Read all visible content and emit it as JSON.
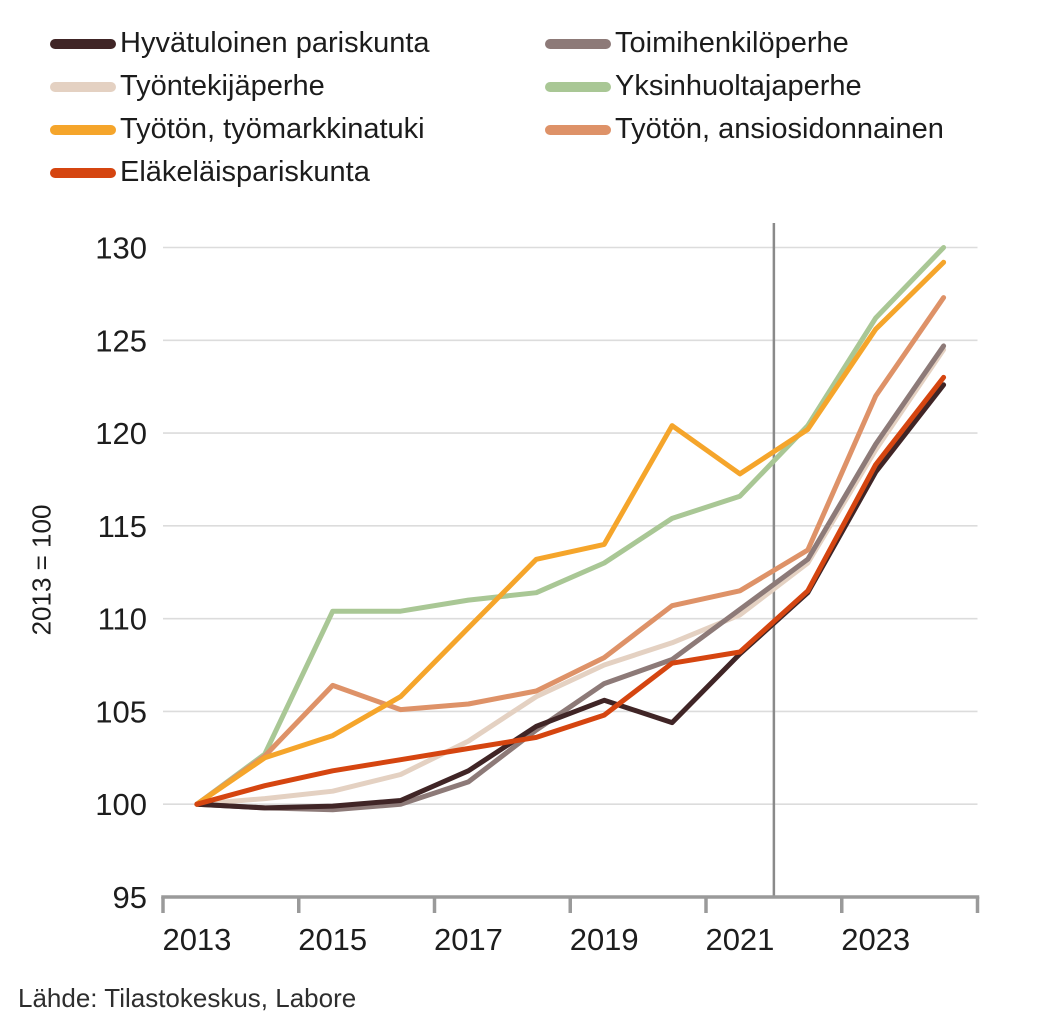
{
  "source": "Lähde: Tilastokeskus, Labore",
  "y_axis": {
    "title": "2013 = 100"
  },
  "x_axis": {
    "tick_labels": [
      "2013",
      "2015",
      "2017",
      "2019",
      "2021",
      "2023"
    ]
  },
  "chart_data": {
    "type": "line",
    "title": "",
    "xlabel": "",
    "ylabel": "2013 = 100",
    "x": [
      2013,
      2014,
      2015,
      2016,
      2017,
      2018,
      2019,
      2020,
      2021,
      2022,
      2023,
      2024
    ],
    "series": [
      {
        "name": "Hyvätuloinen pariskunta",
        "color": "#402526",
        "values": [
          100,
          99.8,
          99.9,
          100.2,
          101.8,
          104.2,
          105.6,
          104.4,
          108.1,
          111.4,
          117.9,
          122.6
        ]
      },
      {
        "name": "Toimihenkilöperhe",
        "color": "#8d7a78",
        "values": [
          100,
          99.8,
          99.7,
          100.0,
          101.2,
          104.0,
          106.5,
          107.8,
          110.5,
          113.2,
          119.4,
          124.7
        ]
      },
      {
        "name": "Työntekijäperhe",
        "color": "#e4d1c2",
        "values": [
          100,
          100.3,
          100.7,
          101.6,
          103.4,
          105.8,
          107.5,
          108.7,
          110.2,
          113.0,
          119.1,
          124.5
        ]
      },
      {
        "name": "Yksinhuoltajaperhe",
        "color": "#a9c795",
        "values": [
          100,
          102.7,
          110.4,
          110.4,
          111.0,
          111.4,
          113.0,
          115.4,
          116.6,
          120.4,
          126.2,
          130.0
        ]
      },
      {
        "name": "Työtön, työmarkkinatuki",
        "color": "#f5a52b",
        "values": [
          100,
          102.5,
          103.7,
          105.8,
          109.5,
          113.2,
          114.0,
          120.4,
          117.8,
          120.2,
          125.6,
          129.2
        ]
      },
      {
        "name": "Työtön, ansiosidonnainen",
        "color": "#de9268",
        "values": [
          100,
          102.6,
          106.4,
          105.1,
          105.4,
          106.1,
          107.9,
          110.7,
          111.5,
          113.7,
          122.0,
          127.3
        ]
      },
      {
        "name": "Eläkeläispariskunta",
        "color": "#d54510",
        "values": [
          100,
          101.0,
          101.8,
          102.4,
          103.0,
          103.6,
          104.8,
          107.6,
          108.2,
          111.5,
          118.3,
          123.0
        ]
      }
    ],
    "draw_order": [
      3,
      2,
      1,
      0,
      5,
      4,
      6
    ],
    "ylim": [
      95,
      130
    ],
    "y_ticks": [
      95,
      100,
      105,
      110,
      115,
      120,
      125,
      130
    ],
    "x_tick_labels": [
      "2013",
      "2015",
      "2017",
      "2019",
      "2021",
      "2023"
    ],
    "x_tick_years": [
      2013,
      2015,
      2017,
      2019,
      2021,
      2023
    ],
    "x_axis_range": [
      2012.5,
      2024.5
    ],
    "vline_x": 2021.5,
    "grid": "horizontal",
    "legend_position": "top",
    "source": "Lähde: Tilastokeskus, Labore"
  }
}
